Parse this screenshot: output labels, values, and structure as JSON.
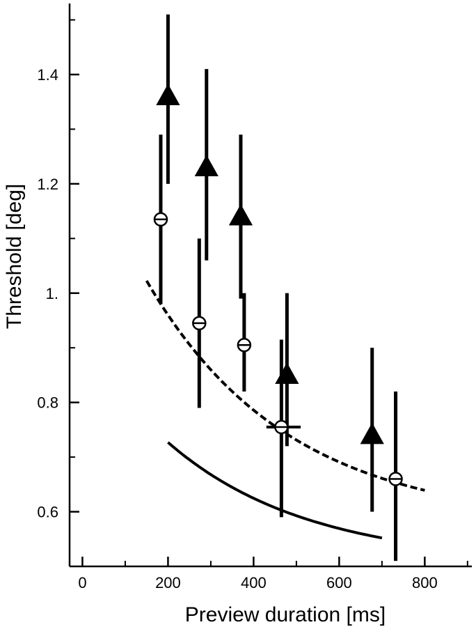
{
  "chart_data": {
    "type": "scatter",
    "title": "",
    "xlabel": "Preview duration  [ms]",
    "ylabel": "Threshold [deg]",
    "xlim": [
      -30,
      910
    ],
    "ylim": [
      0.5,
      1.53
    ],
    "x_ticks": [
      0,
      200,
      400,
      600,
      800
    ],
    "x_tick_labels": [
      "0",
      "200",
      "400",
      "600",
      "800"
    ],
    "y_ticks": [
      0.6,
      0.8,
      1.0,
      1.2,
      1.4
    ],
    "y_tick_labels": [
      "0.6",
      "0.8",
      "1.",
      "1.2",
      "1.4"
    ],
    "grid": false,
    "series": [
      {
        "marker": "filled-triangle",
        "fit_line": "solid",
        "points": [
          {
            "x": 200,
            "y": 1.36,
            "y_low": 1.2,
            "y_high": 1.51
          },
          {
            "x": 290,
            "y": 1.23,
            "y_low": 1.06,
            "y_high": 1.41
          },
          {
            "x": 370,
            "y": 1.14,
            "y_low": 0.99,
            "y_high": 1.29
          },
          {
            "x": 478,
            "y": 0.85,
            "y_low": 0.72,
            "y_high": 1.0
          },
          {
            "x": 677,
            "y": 0.74,
            "y_low": 0.6,
            "y_high": 0.9
          }
        ],
        "fit": {
          "x_start": 200,
          "x_end": 700,
          "a": 0.412,
          "b": 0.00307,
          "c": 0.504
        }
      },
      {
        "marker": "open-circle",
        "fit_line": "dashed",
        "points": [
          {
            "x": 183,
            "y": 1.135,
            "y_low": 0.98,
            "y_high": 1.29
          },
          {
            "x": 273,
            "y": 0.945,
            "y_low": 0.79,
            "y_high": 1.1
          },
          {
            "x": 378,
            "y": 0.905,
            "y_low": 0.82,
            "y_high": 1.0
          },
          {
            "x": 465,
            "y": 0.755,
            "y_low": 0.59,
            "y_high": 0.915,
            "x_low": 430,
            "x_high": 510
          },
          {
            "x": 732,
            "y": 0.66,
            "y_low": 0.51,
            "y_high": 0.82
          }
        ],
        "fit": {
          "x_start": 150,
          "x_end": 800,
          "a": 0.702,
          "b": 0.00303,
          "c": 0.577
        }
      }
    ]
  }
}
